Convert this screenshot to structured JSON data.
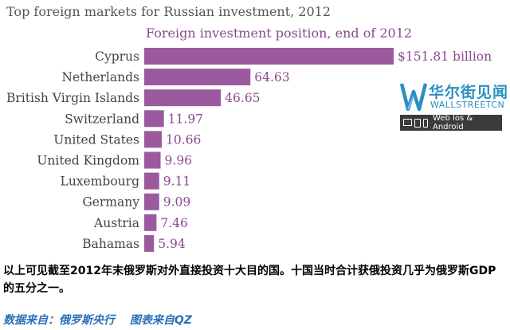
{
  "colors": {
    "bar": "#9b5a9e",
    "value_text": "#8a4a90",
    "subtitle_text": "#8a4a90",
    "logo_blue": "#2b8fc2",
    "source_text": "#2a6fb8"
  },
  "chart_data": {
    "type": "bar",
    "orientation": "horizontal",
    "title": "Top foreign markets for Russian investment, 2012",
    "subtitle": "Foreign investment position, end of 2012",
    "categories": [
      "Cyprus",
      "Netherlands",
      "British Virgin Islands",
      "Switzerland",
      "United States",
      "United Kingdom",
      "Luxembourg",
      "Germany",
      "Austria",
      "Bahamas"
    ],
    "values": [
      151.81,
      64.63,
      46.65,
      11.97,
      10.66,
      9.96,
      9.11,
      9.09,
      7.46,
      5.94
    ],
    "value_labels": [
      "$151.81 billion",
      "64.63",
      "46.65",
      "11.97",
      "10.66",
      "9.96",
      "9.11",
      "9.09",
      "7.46",
      "5.94"
    ],
    "xlim": [
      0,
      151.81
    ],
    "grid": false
  },
  "watermark": {
    "name_cn": "华尔街见闻",
    "name_en": "WALLSTREETCN",
    "platforms": "Web  Ios & Android",
    "icons": [
      "monitor-icon",
      "tablet-icon",
      "phone-icon"
    ]
  },
  "caption": "以上可见截至2012年末俄罗斯对外直接投资十大目的国。十国当时合计获俄投资几乎为俄罗斯GDP的五分之一。",
  "source": "数据来自：俄罗斯央行　 图表来自QZ"
}
